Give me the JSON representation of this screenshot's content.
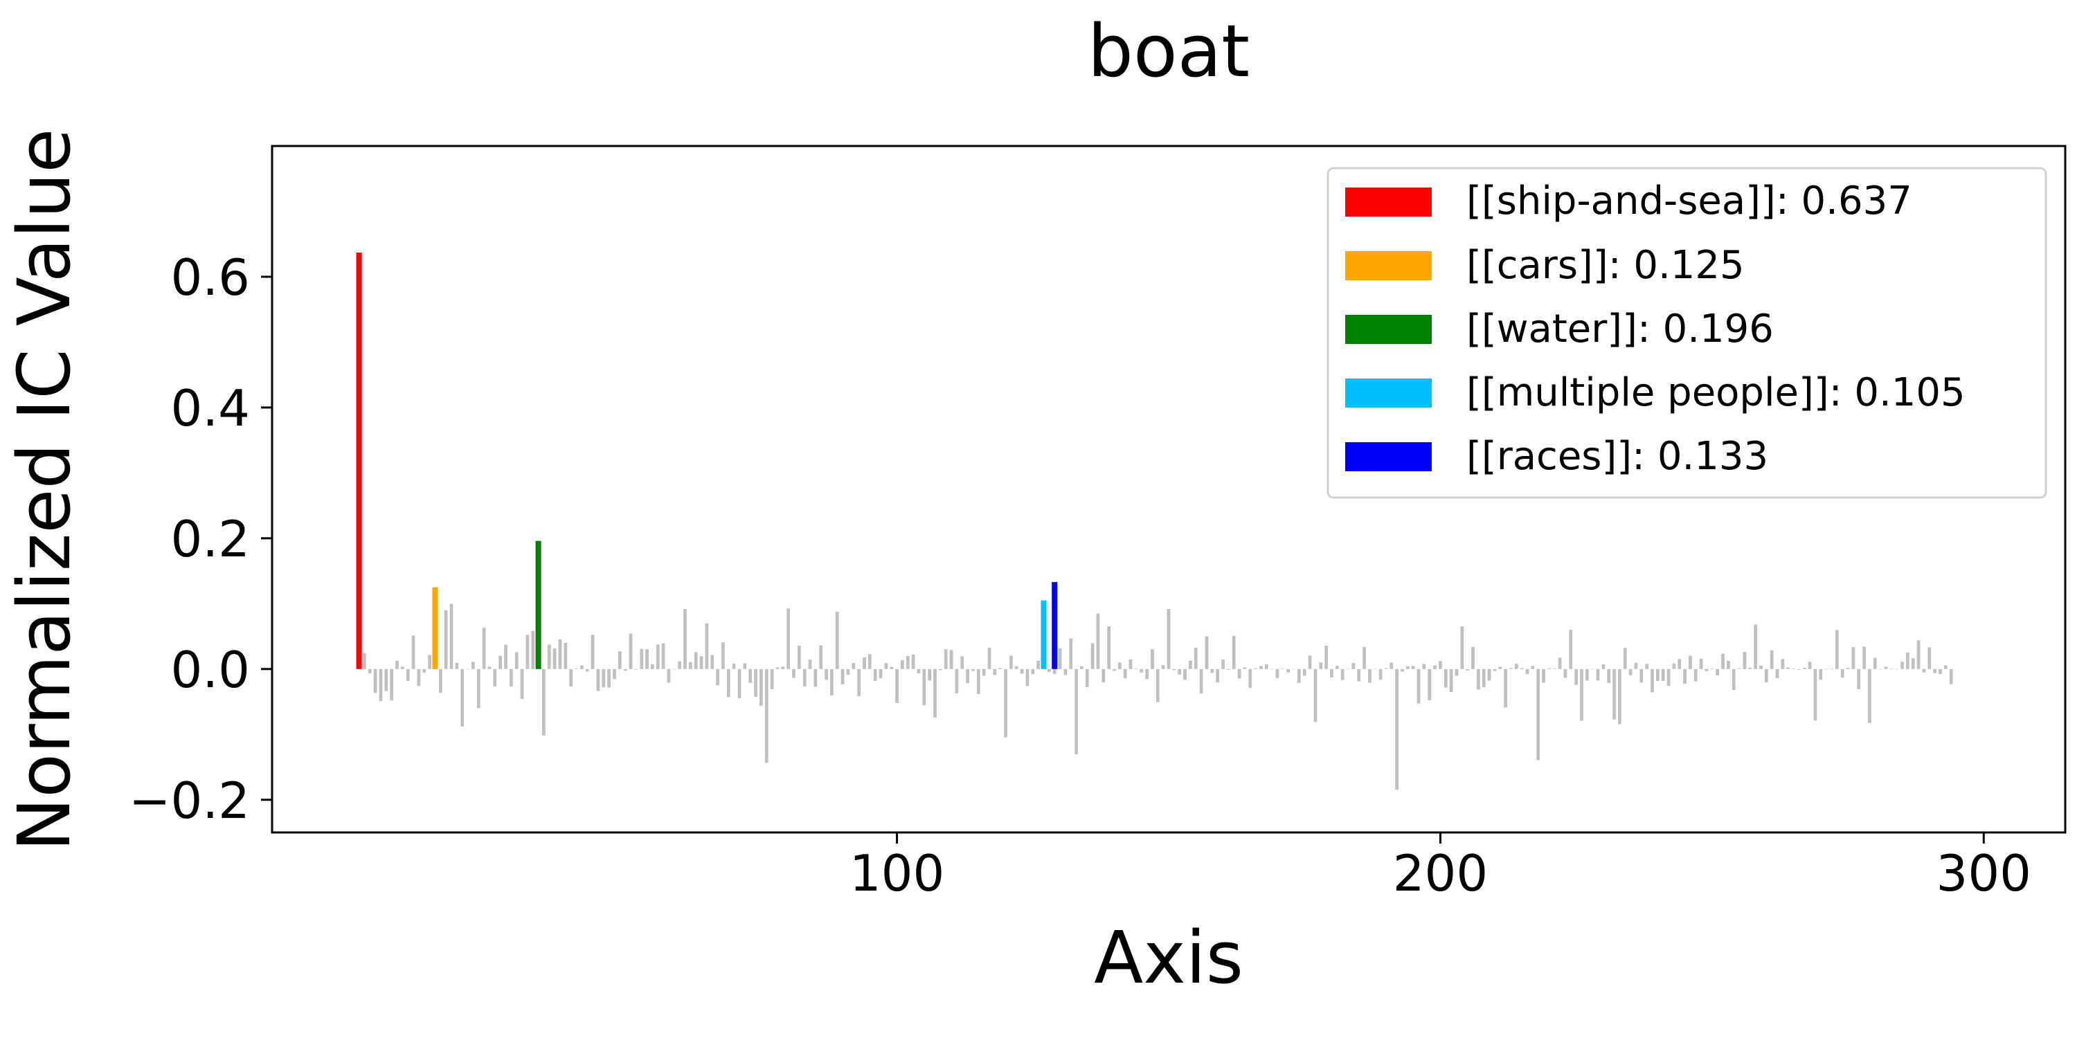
{
  "chart_data": {
    "type": "bar",
    "title": "boat",
    "xlabel": "Axis",
    "ylabel": "Normalized IC Value",
    "xlim": [
      -15,
      315
    ],
    "ylim": [
      -0.25,
      0.8
    ],
    "xticks": [
      100,
      200,
      300
    ],
    "xtick_labels": [
      "100",
      "200",
      "300"
    ],
    "yticks": [
      -0.2,
      0.0,
      0.2,
      0.4,
      0.6
    ],
    "ytick_labels": [
      "−0.2",
      "0.0",
      "0.2",
      "0.4",
      "0.6"
    ],
    "grid": false,
    "legend_position": "top-right",
    "background_bar_color": "#bfbfbf",
    "highlighted": [
      {
        "name": "[[ship-and-sea]]: 0.637",
        "x": 1,
        "value": 0.637,
        "color": "#ff0000"
      },
      {
        "name": "[[cars]]: 0.125",
        "x": 15,
        "value": 0.125,
        "color": "#ffa500"
      },
      {
        "name": "[[water]]: 0.196",
        "x": 34,
        "value": 0.196,
        "color": "#008000"
      },
      {
        "name": "[[multiple people]]: 0.105",
        "x": 127,
        "value": 0.105,
        "color": "#00bfff"
      },
      {
        "name": "[[races]]: 0.133",
        "x": 129,
        "value": 0.133,
        "color": "#0000ff"
      }
    ],
    "background_values": [
      0.0245,
      -0.0063,
      -0.0365,
      -0.0492,
      -0.0337,
      -0.0482,
      0.0126,
      0.0035,
      -0.0182,
      0.0512,
      -0.0259,
      -0.0052,
      0.0213,
      0.0187,
      -0.0362,
      0.0897,
      0.0998,
      0.0094,
      -0.088,
      -0.0004,
      0.011,
      -0.0598,
      0.0631,
      0.0037,
      -0.0265,
      0.0203,
      0.0373,
      -0.0268,
      0.0257,
      -0.0457,
      0.0523,
      0.0583,
      0.0539,
      -0.1017,
      0.0374,
      0.0315,
      0.0455,
      0.0401,
      -0.0269,
      0.0007,
      0.0055,
      -0.0039,
      0.0524,
      -0.0336,
      -0.0279,
      -0.0283,
      -0.0154,
      0.0271,
      -0.0027,
      0.0543,
      -0.0009,
      0.0308,
      0.0302,
      0.0074,
      0.0375,
      0.0393,
      -0.0208,
      -0.0001,
      0.0117,
      0.0917,
      0.0106,
      0.0258,
      0.0195,
      0.0698,
      0.0213,
      -0.0248,
      0.0408,
      -0.0429,
      0.0082,
      -0.0446,
      0.0088,
      -0.0211,
      -0.0425,
      -0.0561,
      -0.1436,
      -0.0307,
      0.0024,
      0.0035,
      0.0927,
      -0.0137,
      0.0357,
      -0.0266,
      0.0145,
      -0.0272,
      0.0362,
      -0.0164,
      -0.0404,
      0.0875,
      -0.0234,
      -0.0088,
      0.0092,
      -0.0413,
      0.0179,
      0.0227,
      -0.018,
      -0.0141,
      0.0091,
      0.0033,
      -0.0518,
      0.0137,
      0.0201,
      0.0221,
      -0.0065,
      -0.0554,
      -0.0175,
      -0.0742,
      -0.0018,
      0.0301,
      0.0291,
      -0.0371,
      0.0195,
      -0.0216,
      -0.0029,
      -0.0382,
      -0.0102,
      0.0326,
      -0.0091,
      0.0016,
      -0.1046,
      0.0204,
      0.0041,
      -0.0071,
      -0.0261,
      -0.0077,
      0.0125,
      0.0205,
      -0.0045,
      -0.0074,
      0.0318,
      -0.0092,
      0.0467,
      -0.1304,
      0.0042,
      -0.0277,
      0.0395,
      0.0849,
      -0.0206,
      0.0651,
      -0.0029,
      0.0101,
      -0.0143,
      0.0148,
      0.0003,
      -0.0053,
      -0.0153,
      0.0303,
      -0.0506,
      0.0059,
      0.0916,
      -0.0018,
      -0.0085,
      -0.0165,
      0.0127,
      0.0325,
      -0.0373,
      0.0501,
      -0.0059,
      -0.0206,
      0.0145,
      -0.0011,
      0.0507,
      -0.0145,
      0.0027,
      -0.0287,
      0.0011,
      0.0045,
      0.0074,
      0.0001,
      -0.0137,
      0.0009,
      -0.0051,
      0.0001,
      -0.0212,
      -0.0103,
      0.0206,
      -0.0809,
      0.0099,
      0.0357,
      -0.0128,
      0.0049,
      -0.0169,
      0.0003,
      0.0092,
      -0.0188,
      0.0339,
      -0.0209,
      0.0003,
      -0.0164,
      0.0013,
      0.0102,
      -0.1846,
      -0.0038,
      0.0042,
      0.0046,
      -0.0527,
      0.0078,
      -0.0479,
      0.0055,
      0.0122,
      -0.0283,
      -0.0352,
      -0.0102,
      0.0651,
      -0.0022,
      0.0338,
      -0.0313,
      -0.0277,
      -0.0176,
      -0.0031,
      0.0035,
      -0.0588,
      0.0014,
      0.0081,
      0.0015,
      -0.0077,
      0.0047,
      -0.1392,
      -0.0209,
      0.0012,
      0.0009,
      0.0173,
      -0.0133,
      0.0601,
      -0.0242,
      -0.0791,
      -0.0176,
      -0.0001,
      -0.0175,
      0.0071,
      -0.0212,
      -0.0772,
      -0.0844,
      0.0323,
      -0.0095,
      0.0096,
      -0.0206,
      0.0079,
      -0.0357,
      -0.0183,
      -0.0182,
      -0.0258,
      0.0084,
      0.0154,
      -0.0225,
      0.0204,
      -0.0188,
      0.0159,
      -0.0031,
      0.0007,
      -0.0099,
      0.0235,
      0.0125,
      -0.0322,
      0.0011,
      0.0264,
      0.0022,
      0.0681,
      0.0052,
      -0.0203,
      0.0287,
      -0.0138,
      0.0153,
      0.0022,
      0.0007,
      -0.0011,
      0.0021,
      0.0111,
      -0.0787,
      -0.0164,
      -0.0001,
      0.0005,
      0.0597,
      -0.0132,
      0.0017,
      0.0335,
      -0.0306,
      0.0342,
      -0.0823,
      0.0172,
      -0.0001,
      0.0035,
      0.0003,
      -0.0006,
      0.0111,
      0.0251,
      0.0165,
      0.0438,
      -0.0051,
      0.0332,
      -0.0062,
      -0.0075,
      0.0055,
      -0.0233
    ]
  }
}
